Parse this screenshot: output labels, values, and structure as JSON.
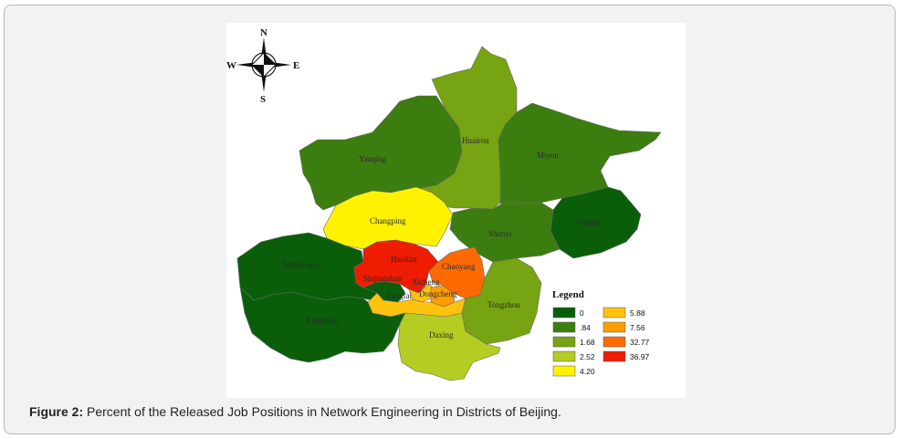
{
  "caption": {
    "label": "Figure 2:",
    "text": " Percent of the Released Job Positions in Network Engineering in Districts of Beijing."
  },
  "compass": {
    "north": "N",
    "south": "S",
    "east": "E",
    "west": "W"
  },
  "legend": {
    "title": "Legend",
    "items": [
      {
        "label": "0",
        "color": "#0a5e0a"
      },
      {
        "label": ".84",
        "color": "#3c7d10"
      },
      {
        "label": "1.68",
        "color": "#76a412"
      },
      {
        "label": "2.52",
        "color": "#b5cc22"
      },
      {
        "label": "4.20",
        "color": "#fff200"
      },
      {
        "label": "5.88",
        "color": "#ffc20e"
      },
      {
        "label": "7.56",
        "color": "#ff9d00"
      },
      {
        "label": "32.77",
        "color": "#ff6a00"
      },
      {
        "label": "36.97",
        "color": "#ee1c00"
      }
    ]
  },
  "districts": {
    "yanqing": "Yanqing",
    "huairou": "Huairou",
    "miyun": "Miyun",
    "pinggu": "Pinggu",
    "changping": "Changping",
    "shunyi": "Shunyi",
    "mentougou": "Mentougou",
    "haidian": "Haidian",
    "chaoyang": "Chaoyang",
    "shijingshan": "Shijingshan",
    "xicheng": "Xicheng",
    "fengtai": "Fengtai",
    "dongcheng": "Dongcheng",
    "tongzhou": "Tongzhou",
    "fangshan": "Fangshan",
    "daxing": "Daxing"
  }
}
